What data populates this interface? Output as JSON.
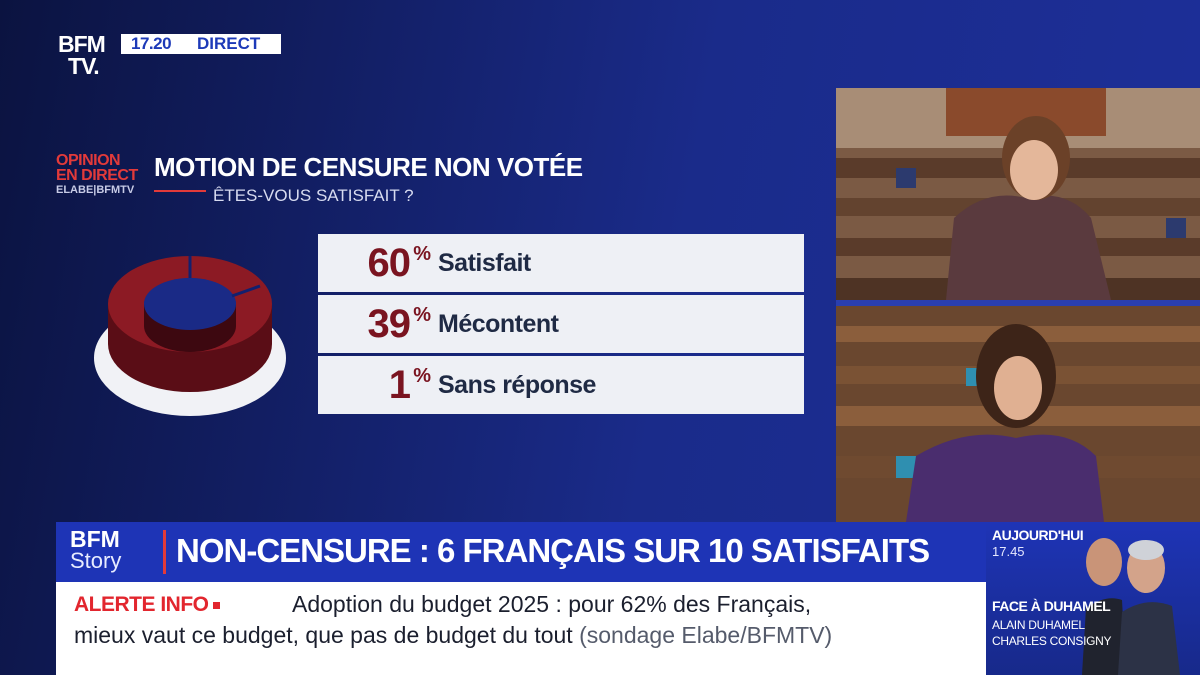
{
  "logo": {
    "line1": "BFM",
    "line2": "TV."
  },
  "live": {
    "time": "17.20",
    "status": "DIRECT"
  },
  "poll": {
    "brand_line1": "OPINION",
    "brand_line2": "EN DIRECT",
    "source": "ELABE|BFMTV",
    "title": "MOTION DE CENSURE NON VOTÉE",
    "question": "ÊTES-VOUS SATISFAIT ?",
    "results": [
      {
        "value": "60",
        "unit": "%",
        "label": "Satisfait"
      },
      {
        "value": "39",
        "unit": "%",
        "label": "Mécontent"
      },
      {
        "value": "1",
        "unit": "%",
        "label": "Sans réponse"
      }
    ]
  },
  "story": {
    "brand": "BFM",
    "sub": "Story",
    "headline": "NON-CENSURE : 6 FRANÇAIS SUR 10 SATISFAITS"
  },
  "alert": {
    "label": "ALERTE INFO",
    "line1": "Adoption du budget 2025 : pour 62% des Français,",
    "line2": "mieux vaut ce budget, que pas de budget du tout",
    "source": "(sondage Elabe/BFMTV)"
  },
  "promo": {
    "when": "AUJOURD'HUI",
    "time": "17.45",
    "show": "FACE À DUHAMEL",
    "guest1": "ALAIN DUHAMEL",
    "guest2": "CHARLES CONSIGNY"
  },
  "colors": {
    "accent_red": "#e23a3a",
    "poll_red": "#7a1420",
    "brand_blue": "#1e34b6"
  }
}
